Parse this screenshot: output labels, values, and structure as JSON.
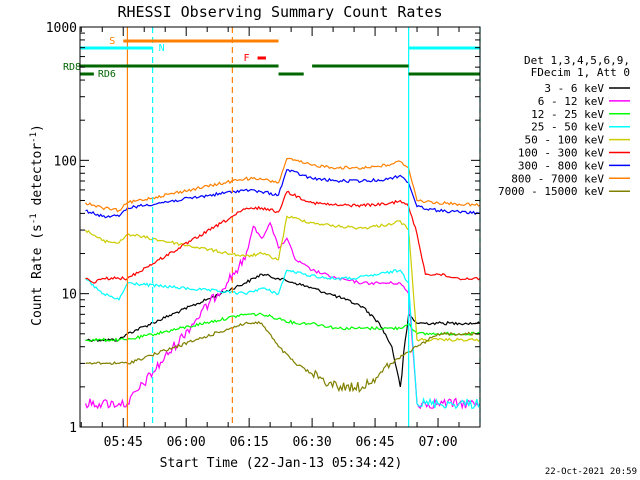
{
  "chart_data": {
    "type": "line",
    "title": "RHESSI Observing Summary Count Rates",
    "xlabel": "Start Time (22-Jan-13 05:34:42)",
    "ylabel": "Count Rate (s⁻¹ detector⁻¹)",
    "ylabel_parts": {
      "main": "Count Rate (s",
      "exp1": "-1",
      "mid": " detector",
      "exp2": "-1",
      "end": ")"
    },
    "yscale": "log",
    "ylim": [
      1,
      1000
    ],
    "xlim": [
      "05:34:42",
      "07:10:00"
    ],
    "x_ticks": [
      "05:45",
      "06:00",
      "06:15",
      "06:30",
      "06:45",
      "07:00"
    ],
    "y_ticks": [
      "1",
      "10",
      "100",
      "1000"
    ],
    "legend_header": [
      "Det 1,3,4,5,6,9,",
      "FDecim 1, Att 0"
    ],
    "legend_placement": "right",
    "series": [
      {
        "name": "3 - 6 keV",
        "color": "#000000",
        "x": [
          "05:36",
          "05:40",
          "05:44",
          "05:46",
          "06:14",
          "06:18",
          "06:22",
          "06:26",
          "06:30",
          "06:34",
          "06:38",
          "06:42",
          "06:46",
          "06:49",
          "06:51",
          "06:53",
          "06:55",
          "07:00",
          "07:05",
          "07:10"
        ],
        "y": [
          4.5,
          4.5,
          4.5,
          5,
          12,
          14,
          13,
          12,
          11,
          10,
          9,
          8,
          6,
          4,
          2,
          7,
          6,
          6,
          6,
          6
        ]
      },
      {
        "name": "6 - 12 keV",
        "color": "#ff00ff",
        "x": [
          "05:36",
          "05:40",
          "05:44",
          "05:46",
          "06:14",
          "06:16",
          "06:18",
          "06:20",
          "06:22",
          "06:24",
          "06:26",
          "06:30",
          "06:36",
          "06:42",
          "06:48",
          "06:51",
          "06:53",
          "06:55",
          "07:00",
          "07:05",
          "07:10"
        ],
        "y": [
          1.5,
          1.5,
          1.5,
          1.5,
          18,
          32,
          26,
          34,
          22,
          26,
          18,
          15,
          13,
          12,
          12,
          12,
          10,
          1.5,
          1.5,
          1.5,
          1.5
        ]
      },
      {
        "name": "12 - 25 keV",
        "color": "#00ff00",
        "x": [
          "05:36",
          "05:40",
          "05:44",
          "05:46",
          "06:14",
          "06:18",
          "06:22",
          "06:26",
          "06:30",
          "06:36",
          "06:42",
          "06:48",
          "06:51",
          "06:53",
          "06:55",
          "07:00",
          "07:05",
          "07:10"
        ],
        "y": [
          4.5,
          4.5,
          4.5,
          4.5,
          7,
          7,
          6.5,
          6,
          6,
          5.5,
          5.5,
          5.5,
          5.5,
          6,
          5,
          5,
          5,
          5
        ]
      },
      {
        "name": "25 - 50 keV",
        "color": "#00ffff",
        "x": [
          "05:36",
          "05:40",
          "05:44",
          "05:46",
          "06:14",
          "06:18",
          "06:22",
          "06:24",
          "06:28",
          "06:34",
          "06:40",
          "06:46",
          "06:51",
          "06:53",
          "06:55",
          "07:00",
          "07:05",
          "07:10"
        ],
        "y": [
          13,
          10,
          9,
          12,
          10,
          11,
          10,
          15,
          14,
          13,
          13,
          14,
          15,
          12,
          1.5,
          1.5,
          1.5,
          1.5
        ]
      },
      {
        "name": "50 - 100 keV",
        "color": "#cccc00",
        "x": [
          "05:36",
          "05:40",
          "05:44",
          "05:46",
          "06:14",
          "06:18",
          "06:22",
          "06:24",
          "06:30",
          "06:36",
          "06:42",
          "06:48",
          "06:51",
          "06:53",
          "06:55",
          "07:00",
          "07:05",
          "07:10"
        ],
        "y": [
          30,
          25,
          24,
          28,
          19,
          20,
          18,
          38,
          34,
          32,
          31,
          33,
          35,
          30,
          4.5,
          4.5,
          4.5,
          4.5
        ]
      },
      {
        "name": "100 - 300 keV",
        "color": "#ff0000",
        "x": [
          "05:36",
          "05:38",
          "05:40",
          "05:44",
          "05:46",
          "06:14",
          "06:18",
          "06:22",
          "06:24",
          "06:30",
          "06:36",
          "06:42",
          "06:48",
          "06:51",
          "06:53",
          "06:55",
          "06:57",
          "07:00",
          "07:05",
          "07:10"
        ],
        "y": [
          13,
          12,
          13,
          13,
          13,
          43,
          44,
          41,
          58,
          48,
          46,
          46,
          47,
          50,
          45,
          28,
          14,
          14,
          13,
          13
        ]
      },
      {
        "name": "300 - 800 keV",
        "color": "#0000ff",
        "x": [
          "05:36",
          "05:40",
          "05:44",
          "05:46",
          "06:14",
          "06:18",
          "06:22",
          "06:24",
          "06:30",
          "06:36",
          "06:42",
          "06:48",
          "06:51",
          "06:53",
          "06:55",
          "07:00",
          "07:05",
          "07:10"
        ],
        "y": [
          42,
          38,
          38,
          44,
          60,
          58,
          55,
          85,
          73,
          70,
          70,
          72,
          77,
          68,
          45,
          42,
          41,
          40
        ]
      },
      {
        "name": "800 - 7000 keV",
        "color": "#ff8000",
        "x": [
          "05:36",
          "05:40",
          "05:44",
          "05:46",
          "06:14",
          "06:18",
          "06:22",
          "06:24",
          "06:30",
          "06:36",
          "06:42",
          "06:48",
          "06:51",
          "06:53",
          "06:55",
          "07:00",
          "07:05",
          "07:10"
        ],
        "y": [
          48,
          44,
          42,
          48,
          73,
          72,
          68,
          103,
          92,
          88,
          88,
          92,
          98,
          88,
          50,
          48,
          47,
          46
        ]
      },
      {
        "name": "7000 - 15000 keV",
        "color": "#808000",
        "x": [
          "05:36",
          "05:40",
          "05:44",
          "05:46",
          "06:14",
          "06:18",
          "06:22",
          "06:26",
          "06:30",
          "06:36",
          "06:42",
          "06:46",
          "06:49",
          "06:52",
          "06:55",
          "07:00",
          "07:05",
          "07:10"
        ],
        "y": [
          3,
          3,
          3,
          3,
          6,
          6,
          4,
          3,
          2.5,
          2,
          2,
          2.5,
          3,
          3.5,
          4,
          5,
          5,
          5
        ]
      }
    ],
    "state_bars": [
      {
        "label": "S",
        "color": "#ff8000",
        "segments": [
          [
            "05:45",
            "06:22"
          ]
        ]
      },
      {
        "label": "N",
        "color": "#00ffff",
        "segments": [
          [
            "05:34:42",
            "05:52"
          ],
          [
            "06:53",
            "07:10"
          ]
        ]
      },
      {
        "label": "F",
        "color": "#ff0000",
        "segments": [
          [
            "06:17",
            "06:19"
          ]
        ]
      },
      {
        "label": "RD8",
        "color": "#006600",
        "segments": [
          [
            "05:34:42",
            "06:22"
          ],
          [
            "06:30",
            "06:53"
          ]
        ]
      },
      {
        "label": "RD6",
        "color": "#006600",
        "segments": [
          [
            "05:34:42",
            "05:38"
          ],
          [
            "06:22",
            "06:28"
          ],
          [
            "06:53",
            "07:10"
          ]
        ]
      }
    ],
    "vlines": [
      {
        "time": "05:46",
        "color": "#ff8000",
        "style": "solid"
      },
      {
        "time": "05:52",
        "color": "#00ffff",
        "style": "dashed"
      },
      {
        "time": "06:11",
        "color": "#ff8000",
        "style": "dashed"
      },
      {
        "time": "06:53",
        "color": "#00ffff",
        "style": "solid"
      },
      {
        "time": "07:10",
        "color": "#00ffff",
        "style": "dashed"
      }
    ],
    "grid": false
  },
  "footer_timestamp": "22-Oct-2021 20:59"
}
